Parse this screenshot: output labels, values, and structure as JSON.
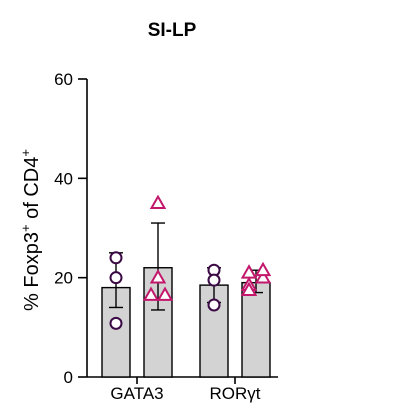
{
  "chart_data": {
    "type": "bar",
    "title": "SI-LP",
    "ylabel_parts": {
      "prefix": "% Foxp3",
      "sup1": "+",
      "middle": " of CD4",
      "sup2": "+"
    },
    "categories": [
      "GATA3",
      "RORγt"
    ],
    "ylim": [
      0,
      60
    ],
    "yticks": [
      0,
      20,
      40,
      60
    ],
    "grid": false,
    "bar_fill": "#d3d3d3",
    "series": [
      {
        "group": "GATA3",
        "marker": "circle",
        "color": "#3b0a45",
        "mean": 18,
        "error": [
          14,
          25
        ],
        "points": [
          24,
          20,
          10.8
        ]
      },
      {
        "group": "GATA3",
        "marker": "triangle",
        "color": "#c2176b",
        "mean": 22,
        "error": [
          13.5,
          31
        ],
        "points": [
          35,
          20,
          16.5,
          16.5
        ]
      },
      {
        "group": "RORγt",
        "marker": "circle",
        "color": "#3b0a45",
        "mean": 18.5,
        "error": [
          15,
          22
        ],
        "points": [
          21.5,
          19.5,
          14.5
        ]
      },
      {
        "group": "RORγt",
        "marker": "triangle",
        "color": "#c2176b",
        "mean": 19,
        "error": [
          17,
          21.5
        ],
        "points": [
          21,
          20,
          18.5,
          21.5,
          17.5
        ]
      }
    ]
  }
}
